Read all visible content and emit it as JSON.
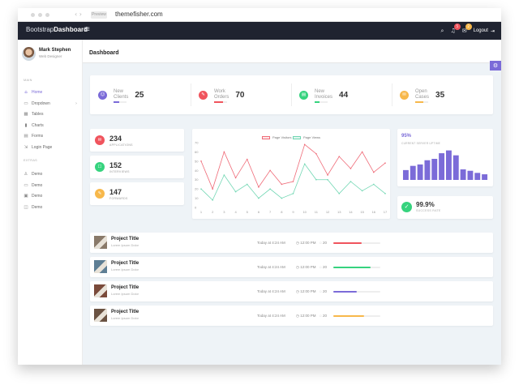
{
  "browser": {
    "url_pill": "Preview",
    "url": "themefisher.com"
  },
  "brand": {
    "light": "Bootstrap",
    "bold": "Dashboard"
  },
  "topnav": {
    "search_icon": "search-icon",
    "notifications": {
      "icon": "bell-icon",
      "badge": "5",
      "badge_color": "#f0545d"
    },
    "messages": {
      "icon": "envelope-icon",
      "badge": "2",
      "badge_color": "#f7b84b"
    },
    "logout_label": "Logout"
  },
  "profile": {
    "name": "Mark Stephen",
    "role": "Web Designer"
  },
  "sidebar": {
    "main_label": "MAIN",
    "items": [
      {
        "label": "Home",
        "icon": "home-icon",
        "active": true
      },
      {
        "label": "Dropdown",
        "icon": "folder-icon",
        "has_caret": true
      },
      {
        "label": "Tables",
        "icon": "grid-icon"
      },
      {
        "label": "Charts",
        "icon": "bar-chart-icon"
      },
      {
        "label": "Forms",
        "icon": "form-icon"
      },
      {
        "label": "Login Page",
        "icon": "login-icon"
      }
    ],
    "extras_label": "EXTRAS",
    "extras": [
      {
        "label": "Demo",
        "icon": "user-icon"
      },
      {
        "label": "Demo",
        "icon": "monitor-icon"
      },
      {
        "label": "Demo",
        "icon": "calendar-icon"
      },
      {
        "label": "Demo",
        "icon": "gamepad-icon"
      }
    ]
  },
  "page": {
    "title": "Dashboard"
  },
  "stats": [
    {
      "line1": "New",
      "line2": "Clients",
      "value": "25",
      "color": "#7b6bd8",
      "progress": 0.45
    },
    {
      "line1": "Work",
      "line2": "Orders",
      "value": "70",
      "color": "#f0545d",
      "progress": 0.7
    },
    {
      "line1": "New",
      "line2": "Invoices",
      "value": "44",
      "color": "#36d37e",
      "progress": 0.4
    },
    {
      "line1": "Open",
      "line2": "Cases",
      "value": "35",
      "color": "#f7b84b",
      "progress": 0.6
    }
  ],
  "left_cards": [
    {
      "value": "234",
      "label": "APPLICATIONS",
      "color": "#f0545d"
    },
    {
      "value": "152",
      "label": "INTERVIEWS",
      "color": "#36d37e"
    },
    {
      "value": "147",
      "label": "FORWARDS",
      "color": "#f7b84b"
    }
  ],
  "chart_data": [
    {
      "type": "line",
      "title": "",
      "xlabel": "",
      "ylabel": "",
      "x": [
        1,
        2,
        3,
        4,
        5,
        6,
        7,
        8,
        9,
        10,
        11,
        12,
        13,
        14,
        15,
        16,
        17
      ],
      "series": [
        {
          "name": "Page Visitors",
          "color": "#ef6b78",
          "values": [
            50,
            20,
            60,
            32,
            52,
            22,
            40,
            25,
            28,
            68,
            58,
            35,
            55,
            42,
            60,
            38,
            48
          ]
        },
        {
          "name": "Page Views",
          "color": "#6fd6b2",
          "values": [
            20,
            8,
            35,
            17,
            25,
            10,
            20,
            10,
            15,
            47,
            30,
            30,
            15,
            28,
            18,
            25,
            15
          ]
        }
      ],
      "ylim": [
        0,
        70
      ],
      "yticks": [
        0,
        10,
        20,
        30,
        40,
        50,
        60,
        70
      ],
      "grid": false,
      "legend": "top-center"
    },
    {
      "type": "bar",
      "title": "95%",
      "subtitle": "CURRENT SERVER UPTIME",
      "values": [
        14,
        20,
        22,
        28,
        30,
        38,
        42,
        35,
        15,
        13,
        10,
        8
      ],
      "color": "#7b6bd8",
      "ylim": [
        0,
        45
      ]
    }
  ],
  "success": {
    "value": "99.9%",
    "label": "SUCCESS RATE",
    "icon": "check-icon"
  },
  "projects": [
    {
      "title": "Project Title",
      "subtitle": "Lorem Ipsum Dolor",
      "time": "Today at 4:24 AM",
      "clock": "12:00 PM",
      "comments": "20",
      "progress": 0.6,
      "color": "#f0545d",
      "thumb": "#8a7a6a"
    },
    {
      "title": "Project Title",
      "subtitle": "Lorem Ipsum Dolor",
      "time": "Today at 4:24 AM",
      "clock": "12:00 PM",
      "comments": "20",
      "progress": 0.8,
      "color": "#36d37e",
      "thumb": "#5e7e94"
    },
    {
      "title": "Project Title",
      "subtitle": "Lorem Ipsum Dolor",
      "time": "Today at 4:24 AM",
      "clock": "12:00 PM",
      "comments": "20",
      "progress": 0.5,
      "color": "#7b6bd8",
      "thumb": "#7a4a3a"
    },
    {
      "title": "Project Title",
      "subtitle": "Lorem Ipsum Dolor",
      "time": "Today at 4:24 AM",
      "clock": "12:00 PM",
      "comments": "20",
      "progress": 0.65,
      "color": "#f7b84b",
      "thumb": "#6a5242"
    }
  ]
}
